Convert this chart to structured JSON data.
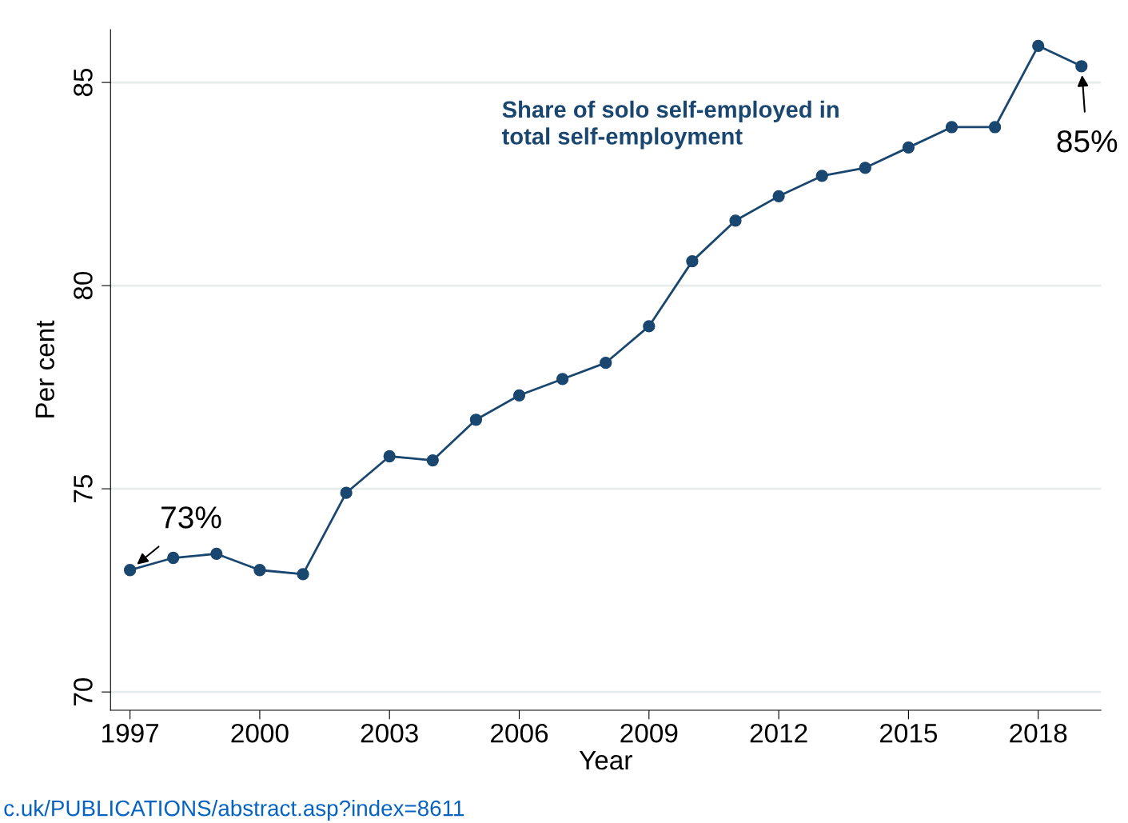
{
  "chart_data": {
    "type": "line",
    "xlabel": "Year",
    "ylabel": "Per cent",
    "x": [
      1997,
      1998,
      1999,
      2000,
      2001,
      2002,
      2003,
      2004,
      2005,
      2006,
      2007,
      2008,
      2009,
      2010,
      2011,
      2012,
      2013,
      2014,
      2015,
      2016,
      2017,
      2018,
      2019
    ],
    "series": [
      {
        "name": "Share of solo self-employed in\ntotal self-employment",
        "color": "#1a476f",
        "values": [
          73.0,
          73.3,
          73.4,
          73.0,
          72.9,
          74.9,
          75.8,
          75.7,
          76.7,
          77.3,
          77.7,
          78.1,
          79.0,
          80.6,
          81.6,
          82.2,
          82.7,
          82.9,
          83.4,
          83.9,
          83.9,
          85.9,
          85.4
        ]
      }
    ],
    "xlim": [
      1996.55,
      2019.45
    ],
    "xticks": [
      1997,
      2000,
      2003,
      2006,
      2009,
      2012,
      2015,
      2018
    ],
    "ylim": [
      69.55,
      86.3
    ],
    "yticks": [
      70,
      75,
      80,
      85
    ],
    "grid": "y",
    "marker": "circle",
    "line_style": "solid",
    "legend": false,
    "annotations": [
      {
        "text": "73%",
        "x": 1997,
        "y": 73.0
      },
      {
        "text": "85%",
        "x": 2019,
        "y": 85.4
      },
      "c.uk/PUBLICATIONS/abstract.asp?index=8611"
    ]
  }
}
